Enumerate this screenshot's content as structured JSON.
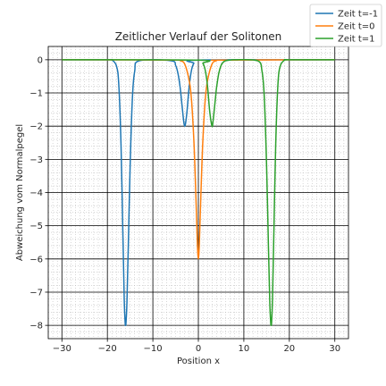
{
  "chart_data": {
    "type": "line",
    "title": "Zeitlicher Verlauf der Solitonen",
    "xlabel": "Position x",
    "ylabel": "Abweichung vom Normalpegel",
    "xlim": [
      -33,
      33
    ],
    "ylim": [
      -8.4,
      0.4
    ],
    "xticks": [
      -30,
      -20,
      -10,
      0,
      10,
      20,
      30
    ],
    "yticks": [
      0,
      -1,
      -2,
      -3,
      -4,
      -5,
      -6,
      -7,
      -8
    ],
    "x_minor_step": 1,
    "y_minor_step": 0.2,
    "grid": true,
    "legend_position": "top-right (outside axes)",
    "series": [
      {
        "name": "Zeit t=-1",
        "color": "#1f77b4",
        "x": [
          -30,
          -20,
          -19,
          -18,
          -17.5,
          -17,
          -16.6,
          -16.3,
          -16.1,
          -16,
          -15.9,
          -15.7,
          -15.4,
          -15,
          -14.5,
          -14,
          -13,
          -6,
          -5,
          -4.5,
          -4,
          -3.5,
          -3.2,
          -3,
          -2.8,
          -2.5,
          -2,
          -1.5,
          -1,
          0,
          30
        ],
        "y": [
          0,
          0,
          -0.01,
          -0.19,
          -0.73,
          -2.57,
          -5.2,
          -7.2,
          -7.9,
          -8,
          -7.9,
          -7.3,
          -5.6,
          -3.2,
          -1.15,
          -0.35,
          -0.03,
          -0.03,
          -0.17,
          -0.4,
          -0.84,
          -1.5,
          -1.88,
          -2,
          -1.9,
          -1.56,
          -0.78,
          -0.31,
          -0.11,
          -0.01,
          0
        ]
      },
      {
        "name": "Zeit t=0",
        "color": "#ff7f0e",
        "x": [
          -30,
          -5,
          -4,
          -3,
          -2,
          -1.5,
          -1,
          -0.7,
          -0.4,
          -0.2,
          0,
          0.2,
          0.4,
          0.7,
          1,
          1.5,
          2,
          3,
          4,
          5,
          30
        ],
        "y": [
          0,
          -0.01,
          -0.03,
          -0.13,
          -0.64,
          -1.22,
          -2.4,
          -3.47,
          -4.73,
          -5.6,
          -6,
          -5.6,
          -4.73,
          -3.47,
          -2.4,
          -1.22,
          -0.64,
          -0.13,
          -0.03,
          -0.01,
          0
        ]
      },
      {
        "name": "Zeit t=1",
        "color": "#2ca02c",
        "x": [
          -30,
          0,
          1,
          1.5,
          2,
          2.5,
          3,
          3.2,
          3.5,
          3.8,
          4,
          4.5,
          5,
          5.5,
          6,
          7,
          8,
          13,
          14,
          14.5,
          15,
          15.4,
          15.7,
          15.9,
          16,
          16.1,
          16.3,
          16.6,
          17,
          17.5,
          18,
          19,
          20,
          30
        ],
        "y": [
          0,
          -0.01,
          -0.11,
          -0.31,
          -0.78,
          -1.56,
          -2,
          -1.88,
          -1.5,
          -1.1,
          -0.84,
          -0.4,
          -0.17,
          -0.07,
          -0.03,
          -0.01,
          0,
          -0.03,
          -0.35,
          -1.15,
          -3.2,
          -5.6,
          -7.3,
          -7.9,
          -8,
          -7.9,
          -7.2,
          -5.2,
          -2.57,
          -0.73,
          -0.19,
          -0.01,
          0,
          0
        ]
      }
    ]
  }
}
